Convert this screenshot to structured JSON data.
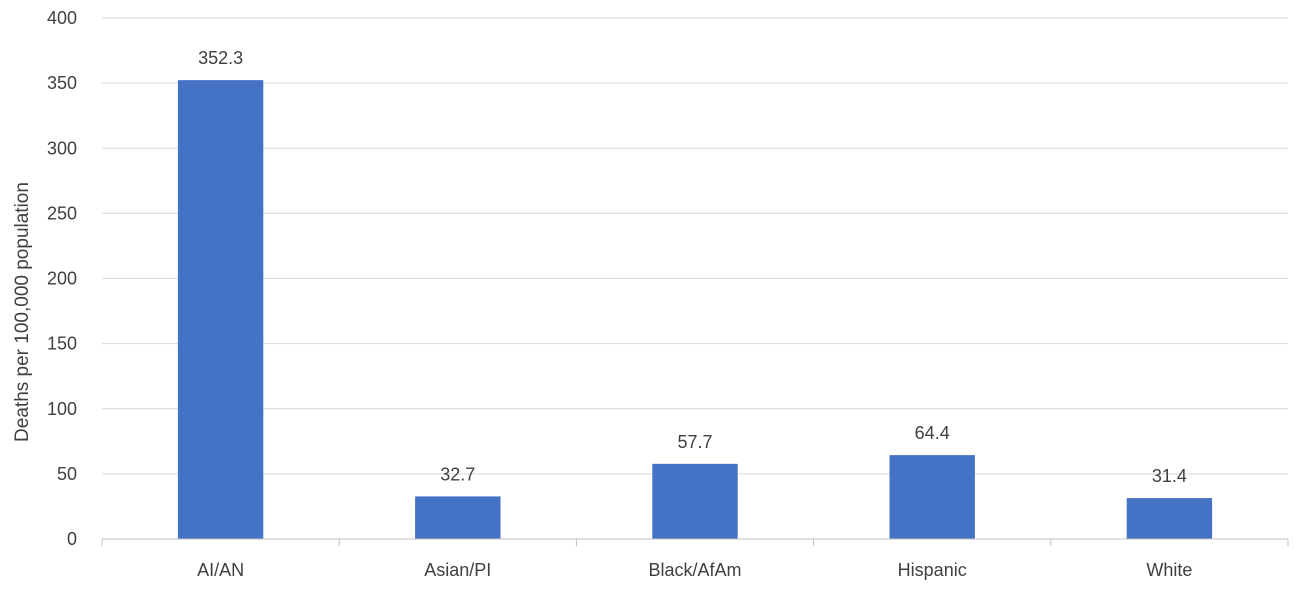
{
  "chart_data": {
    "type": "bar",
    "title": "",
    "xlabel": "",
    "ylabel": "Deaths per 100,000 population",
    "categories": [
      "AI/AN",
      "Asian/PI",
      "Black/AfAm",
      "Hispanic",
      "White"
    ],
    "values": [
      352.3,
      32.7,
      57.7,
      64.4,
      31.4
    ],
    "data_labels": [
      "352.3",
      "32.7",
      "57.7",
      "64.4",
      "31.4"
    ],
    "ylim": [
      0,
      400
    ],
    "yticks": [
      0,
      50,
      100,
      150,
      200,
      250,
      300,
      350,
      400
    ],
    "grid": true,
    "legend": "none",
    "bar_color": "#4472C4",
    "grid_color": "#D9D9D9",
    "axis_color": "#BFBFBF"
  }
}
